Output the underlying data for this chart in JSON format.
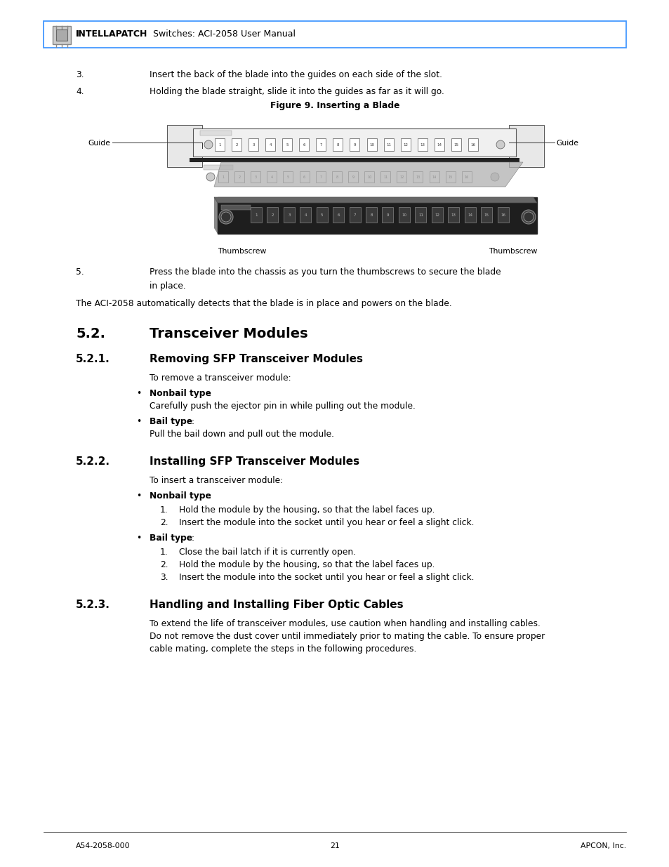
{
  "page_bg": "#ffffff",
  "header_border_color": "#4499ff",
  "footer_left": "A54-2058-000",
  "footer_center": "21",
  "footer_right": "APCON, Inc.",
  "step3": "Insert the back of the blade into the guides on each side of the slot.",
  "step4": "Holding the blade straight, slide it into the guides as far as it will go.",
  "figure_caption": "Figure 9. Inserting a Blade",
  "step5_line1": "Press the blade into the chassis as you turn the thumbscrews to secure the blade",
  "step5_line2": "in place.",
  "para1": "The ACI-2058 automatically detects that the blade is in place and powers on the blade.",
  "s52_num": "5.2.",
  "s52_title": "Transceiver Modules",
  "s521_num": "5.2.1.",
  "s521_title": "Removing SFP Transceiver Modules",
  "s521_intro": "To remove a transceiver module:",
  "s522_num": "5.2.2.",
  "s522_title": "Installing SFP Transceiver Modules",
  "s522_intro": "To insert a transceiver module:",
  "s523_num": "5.2.3.",
  "s523_title": "Handling and Installing Fiber Optic Cables",
  "s523_p1": "To extend the life of transceiver modules, use caution when handling and installing cables.",
  "s523_p2": "Do not remove the dust cover until immediately prior to mating the cable. To ensure proper",
  "s523_p3": "cable mating, complete the steps in the following procedures."
}
